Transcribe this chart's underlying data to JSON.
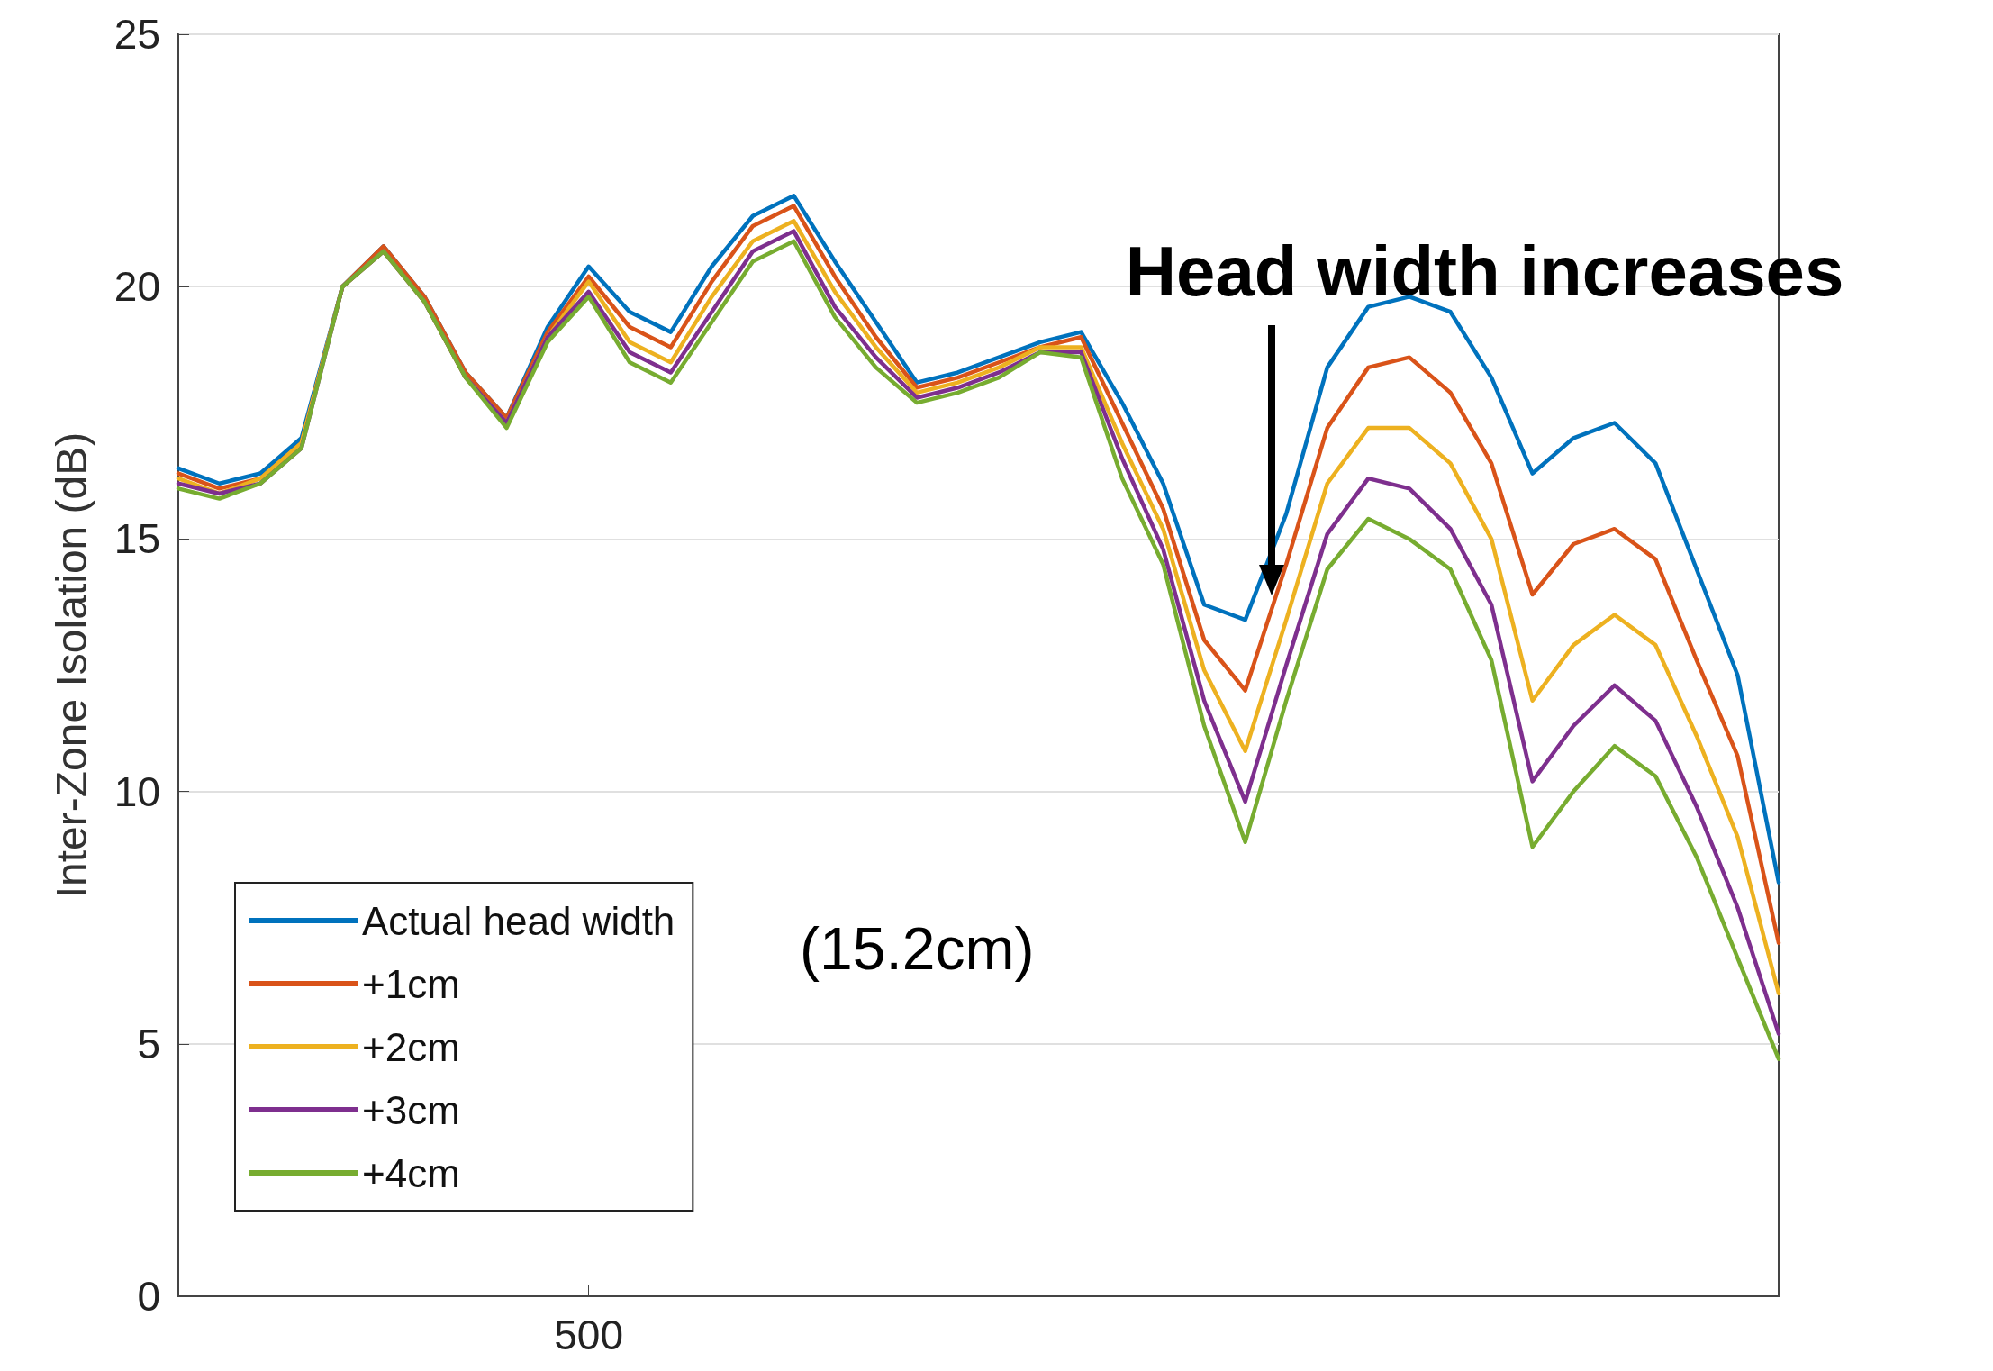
{
  "chart_data": {
    "type": "line",
    "ylabel": "Inter-Zone Isolation (dB)",
    "categories": [
      null,
      null,
      null,
      null,
      null,
      null,
      null,
      null,
      null,
      null,
      "500",
      null,
      null,
      null,
      null,
      null,
      null,
      null,
      null,
      null,
      null,
      null,
      null,
      null,
      null,
      null,
      null,
      null,
      null,
      null,
      null,
      null,
      null,
      null,
      null,
      null,
      null,
      null,
      null,
      null
    ],
    "series": [
      {
        "name": "Actual head width",
        "color": "#0072bd",
        "values": [
          16.4,
          16.1,
          16.3,
          17.0,
          20.0,
          20.8,
          19.8,
          18.3,
          17.4,
          19.2,
          20.4,
          19.5,
          19.1,
          20.4,
          21.4,
          21.8,
          20.5,
          19.3,
          18.1,
          18.3,
          18.6,
          18.9,
          19.1,
          17.7,
          16.1,
          13.7,
          13.4,
          15.5,
          18.4,
          19.6,
          19.8,
          19.5,
          18.2,
          16.3,
          17.0,
          17.3,
          16.5,
          14.4,
          12.3,
          8.2
        ]
      },
      {
        "name": "+1cm",
        "color": "#d95319",
        "values": [
          16.3,
          16.0,
          16.2,
          16.9,
          20.0,
          20.8,
          19.8,
          18.3,
          17.4,
          19.1,
          20.2,
          19.2,
          18.8,
          20.1,
          21.2,
          21.6,
          20.2,
          19.0,
          18.0,
          18.2,
          18.5,
          18.8,
          19.0,
          17.3,
          15.6,
          13.0,
          12.0,
          14.5,
          17.2,
          18.4,
          18.6,
          17.9,
          16.5,
          13.9,
          14.9,
          15.2,
          14.6,
          12.6,
          10.7,
          7.0
        ]
      },
      {
        "name": "+2cm",
        "color": "#edb120",
        "values": [
          16.2,
          15.9,
          16.2,
          16.9,
          20.0,
          20.7,
          19.7,
          18.2,
          17.3,
          19.0,
          20.1,
          18.9,
          18.5,
          19.8,
          20.9,
          21.3,
          19.9,
          18.8,
          17.9,
          18.1,
          18.4,
          18.8,
          18.8,
          16.9,
          15.2,
          12.4,
          10.8,
          13.4,
          16.1,
          17.2,
          17.2,
          16.5,
          15.0,
          11.8,
          12.9,
          13.5,
          12.9,
          11.1,
          9.1,
          6.0
        ]
      },
      {
        "name": "+3cm",
        "color": "#7e2f8e",
        "values": [
          16.1,
          15.9,
          16.1,
          16.8,
          20.0,
          20.7,
          19.7,
          18.2,
          17.3,
          19.0,
          19.9,
          18.7,
          18.3,
          19.5,
          20.7,
          21.1,
          19.6,
          18.6,
          17.8,
          18.0,
          18.3,
          18.7,
          18.7,
          16.6,
          14.8,
          11.8,
          9.8,
          12.5,
          15.1,
          16.2,
          16.0,
          15.2,
          13.7,
          10.2,
          11.3,
          12.1,
          11.4,
          9.7,
          7.7,
          5.2
        ]
      },
      {
        "name": "+4cm",
        "color": "#77ac30",
        "values": [
          16.0,
          15.8,
          16.1,
          16.8,
          20.0,
          20.7,
          19.7,
          18.2,
          17.2,
          18.9,
          19.8,
          18.5,
          18.1,
          19.3,
          20.5,
          20.9,
          19.4,
          18.4,
          17.7,
          17.9,
          18.2,
          18.7,
          18.6,
          16.2,
          14.5,
          11.3,
          9.0,
          11.8,
          14.4,
          15.4,
          15.0,
          14.4,
          12.6,
          8.9,
          10.0,
          10.9,
          10.3,
          8.7,
          6.7,
          4.7
        ]
      }
    ],
    "ylim": [
      0,
      25
    ],
    "yticks": [
      0,
      5,
      10,
      15,
      20,
      25
    ],
    "grid": "y",
    "legend": "bottom left",
    "marker": "none",
    "line_style": "solid",
    "annotations": [
      "Head width increases",
      "(15.2cm)"
    ]
  }
}
